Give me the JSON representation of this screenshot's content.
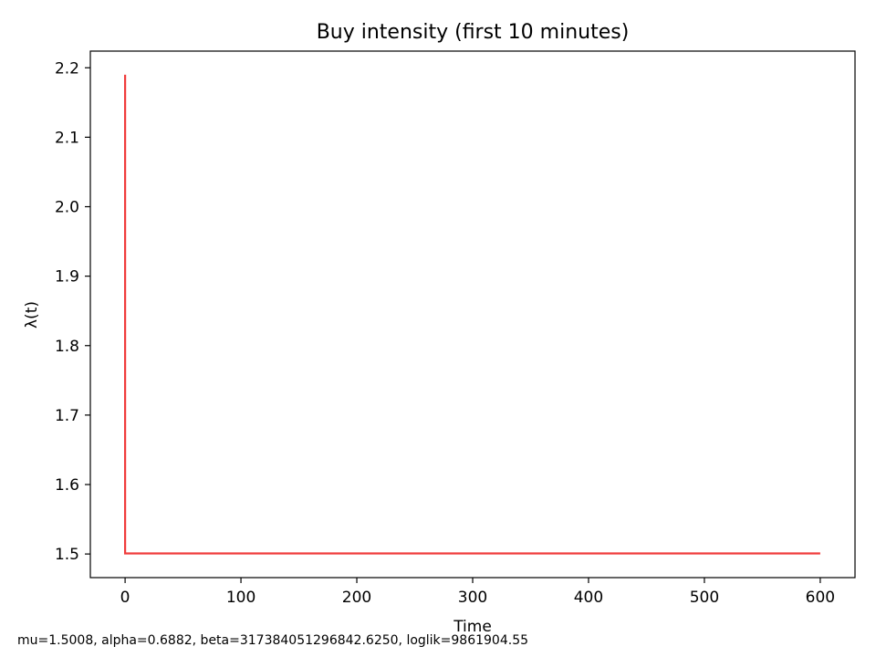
{
  "chart_data": {
    "type": "line",
    "title": "Buy intensity (first 10 minutes)",
    "xlabel": "Time",
    "ylabel": "λ(t)",
    "xlim": [
      -30,
      630
    ],
    "ylim": [
      1.466,
      2.224
    ],
    "xticks": [
      0,
      100,
      200,
      300,
      400,
      500,
      600
    ],
    "yticks": [
      1.5,
      1.6,
      1.7,
      1.8,
      1.9,
      2.0,
      2.1,
      2.2
    ],
    "xtick_labels": [
      "0",
      "100",
      "200",
      "300",
      "400",
      "500",
      "600"
    ],
    "ytick_labels": [
      "1.5",
      "1.6",
      "1.7",
      "1.8",
      "1.9",
      "2.0",
      "2.1",
      "2.2"
    ],
    "grid": false,
    "legend": "none",
    "series": [
      {
        "color": "#f03c3c",
        "x": [
          0,
          0,
          0.5,
          600
        ],
        "y": [
          2.19,
          1.5008,
          1.5008,
          1.5008
        ]
      }
    ]
  },
  "footer": {
    "caption": "mu=1.5008, alpha=0.6882, beta=317384051296842.6250, loglik=9861904.55"
  }
}
